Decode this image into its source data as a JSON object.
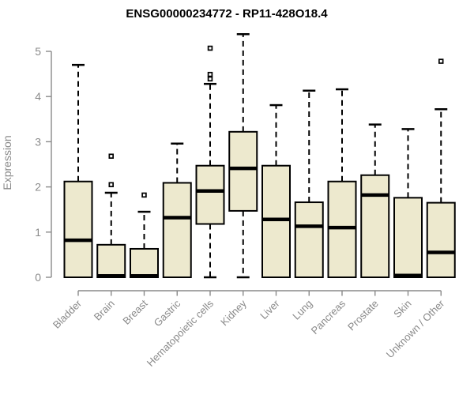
{
  "title": "ENSG00000234772 - RP11-428O18.4",
  "chart_data": {
    "type": "boxplot",
    "title": "ENSG00000234772 - RP11-428O18.4",
    "xlabel": "",
    "ylabel": "Expression",
    "ylim": [
      0,
      5
    ],
    "yticks": [
      0,
      1,
      2,
      3,
      4,
      5
    ],
    "grid": false,
    "legend": false,
    "categories": [
      "Bladder",
      "Brain",
      "Breast",
      "Gastric",
      "Hematopoietic cells",
      "Kidney",
      "Liver",
      "Lung",
      "Pancreas",
      "Prostate",
      "Skin",
      "Unknown / Other"
    ],
    "boxes": [
      {
        "category": "Bladder",
        "whisker_low": 0,
        "q1": 0,
        "median": 0.82,
        "q3": 2.12,
        "whisker_high": 4.7,
        "outliers": []
      },
      {
        "category": "Brain",
        "whisker_low": 0,
        "q1": 0,
        "median": 0.03,
        "q3": 0.72,
        "whisker_high": 1.87,
        "outliers": [
          2.05,
          2.68
        ]
      },
      {
        "category": "Breast",
        "whisker_low": 0,
        "q1": 0,
        "median": 0.03,
        "q3": 0.63,
        "whisker_high": 1.45,
        "outliers": [
          1.82
        ]
      },
      {
        "category": "Gastric",
        "whisker_low": 0,
        "q1": 0,
        "median": 1.32,
        "q3": 2.09,
        "whisker_high": 2.96,
        "outliers": []
      },
      {
        "category": "Hematopoietic cells",
        "whisker_low": 0,
        "q1": 1.18,
        "median": 1.91,
        "q3": 2.47,
        "whisker_high": 4.28,
        "outliers": [
          4.39,
          4.49,
          5.07
        ]
      },
      {
        "category": "Kidney",
        "whisker_low": 0,
        "q1": 1.47,
        "median": 2.41,
        "q3": 3.22,
        "whisker_high": 5.38,
        "outliers": []
      },
      {
        "category": "Liver",
        "whisker_low": 0,
        "q1": 0,
        "median": 1.28,
        "q3": 2.47,
        "whisker_high": 3.81,
        "outliers": []
      },
      {
        "category": "Lung",
        "whisker_low": 0,
        "q1": 0,
        "median": 1.13,
        "q3": 1.66,
        "whisker_high": 4.13,
        "outliers": []
      },
      {
        "category": "Pancreas",
        "whisker_low": 0,
        "q1": 0,
        "median": 1.1,
        "q3": 2.12,
        "whisker_high": 4.16,
        "outliers": []
      },
      {
        "category": "Prostate",
        "whisker_low": 0,
        "q1": 0,
        "median": 1.82,
        "q3": 2.26,
        "whisker_high": 3.38,
        "outliers": []
      },
      {
        "category": "Skin",
        "whisker_low": 0,
        "q1": 0,
        "median": 0.04,
        "q3": 1.76,
        "whisker_high": 3.28,
        "outliers": []
      },
      {
        "category": "Unknown / Other",
        "whisker_low": 0,
        "q1": 0,
        "median": 0.55,
        "q3": 1.65,
        "whisker_high": 3.72,
        "outliers": [
          4.78
        ]
      }
    ],
    "colors": {
      "box_fill": "#ede9ce",
      "box_border": "#000000",
      "median": "#000000",
      "whisker": "#000000",
      "outlier": "#000000",
      "axis": "#8a8a8a",
      "tick_text": "#8a8a8a",
      "title_text": "#000000",
      "background": "#ffffff"
    }
  }
}
